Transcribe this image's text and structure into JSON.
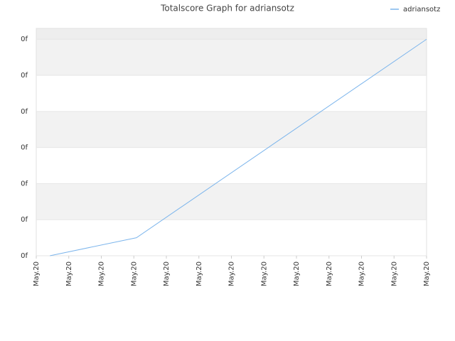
{
  "chart_data": {
    "type": "line",
    "title": "Totalscore Graph for adriansotz",
    "x": [
      0.42,
      3.08,
      12
    ],
    "series": [
      {
        "name": "adriansotz",
        "color": "#7cb5ec",
        "values": [
          0,
          0.5,
          6
        ]
      }
    ],
    "xlim": [
      0,
      12
    ],
    "xticks": [
      {
        "value": 0,
        "label": "May.20"
      },
      {
        "value": 1,
        "label": "May.20"
      },
      {
        "value": 2,
        "label": "May.20"
      },
      {
        "value": 3,
        "label": "May.20"
      },
      {
        "value": 4,
        "label": "May.20"
      },
      {
        "value": 5,
        "label": "May.20"
      },
      {
        "value": 6,
        "label": "May.20"
      },
      {
        "value": 7,
        "label": "May.20"
      },
      {
        "value": 8,
        "label": "May.20"
      },
      {
        "value": 9,
        "label": "May.20"
      },
      {
        "value": 10,
        "label": "May.20"
      },
      {
        "value": 11,
        "label": "May.20"
      },
      {
        "value": 12,
        "label": "May.20"
      }
    ],
    "ylim": [
      0,
      6.3
    ],
    "yticks": [
      {
        "value": 0,
        "label": "0f"
      },
      {
        "value": 1,
        "label": "0f"
      },
      {
        "value": 2,
        "label": "0f"
      },
      {
        "value": 3,
        "label": "0f"
      },
      {
        "value": 4,
        "label": "0f"
      },
      {
        "value": 5,
        "label": "0f"
      },
      {
        "value": 6,
        "label": "0f"
      }
    ],
    "grid": true,
    "legend": "top-right"
  }
}
